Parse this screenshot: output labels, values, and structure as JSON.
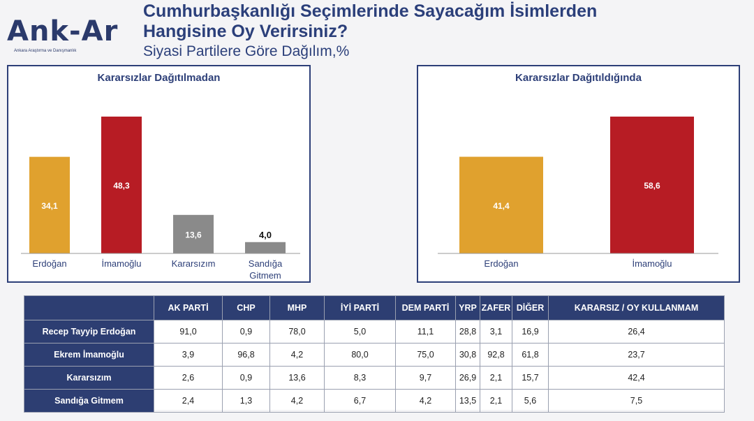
{
  "logo": {
    "text": "Ank-Ar",
    "subtitle": "Ankara Araştırma ve Danışmanlık"
  },
  "header": {
    "title_line1": "Cumhurbaşkanlığı Seçimlerinde Sayacağım İsimlerden",
    "title_line2": "Hangisine Oy Verirsiniz?",
    "subtitle": "Siyasi Partilere Göre Dağılım,%"
  },
  "chart_data": [
    {
      "type": "bar",
      "title": "Kararsızlar Dağıtılmadan",
      "categories": [
        "Erdoğan",
        "İmamoğlu",
        "Kararsızım",
        "Sandığa Gitmem"
      ],
      "values": [
        34.1,
        48.3,
        13.6,
        4.0
      ],
      "value_labels": [
        "34,1",
        "48,3",
        "13,6",
        "4,0"
      ],
      "colors": [
        "#e0a12e",
        "#b71c24",
        "#8a8a8a",
        "#8a8a8a"
      ],
      "xlabel": "",
      "ylabel": "",
      "ylim": [
        0,
        48.3
      ],
      "grid": false
    },
    {
      "type": "bar",
      "title": "Kararsızlar Dağıtıldığında",
      "categories": [
        "Erdoğan",
        "İmamoğlu"
      ],
      "values": [
        41.4,
        58.6
      ],
      "value_labels": [
        "41,4",
        "58,6"
      ],
      "colors": [
        "#e0a12e",
        "#b71c24"
      ],
      "xlabel": "",
      "ylabel": "",
      "ylim": [
        0,
        58.6
      ],
      "grid": false
    }
  ],
  "table": {
    "columns": [
      "AK PARTİ",
      "CHP",
      "MHP",
      "İYİ PARTİ",
      "DEM PARTİ",
      "YRP",
      "ZAFER",
      "DİĞER",
      "KARARSIZ / OY KULLANMAM"
    ],
    "rows": [
      {
        "label": "Recep Tayyip Erdoğan",
        "values": [
          "91,0",
          "0,9",
          "78,0",
          "5,0",
          "11,1",
          "28,8",
          "3,1",
          "16,9",
          "26,4"
        ]
      },
      {
        "label": "Ekrem İmamoğlu",
        "values": [
          "3,9",
          "96,8",
          "4,2",
          "80,0",
          "75,0",
          "30,8",
          "92,8",
          "61,8",
          "23,7"
        ]
      },
      {
        "label": "Kararsızım",
        "values": [
          "2,6",
          "0,9",
          "13,6",
          "8,3",
          "9,7",
          "26,9",
          "2,1",
          "15,7",
          "42,4"
        ]
      },
      {
        "label": "Sandığa Gitmem",
        "values": [
          "2,4",
          "1,3",
          "4,2",
          "6,7",
          "4,2",
          "13,5",
          "2,1",
          "5,6",
          "7,5"
        ]
      }
    ]
  }
}
